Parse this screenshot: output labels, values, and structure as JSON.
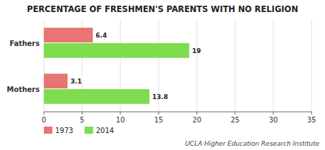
{
  "chart_data": {
    "type": "bar",
    "orientation": "horizontal",
    "title": "PERCENTAGE OF FRESHMEN'S PARENTS WITH NO RELIGION",
    "categories": [
      "Mothers",
      "Fathers"
    ],
    "series": [
      {
        "name": "1973",
        "color": "#e87474",
        "values": [
          3.1,
          6.4
        ]
      },
      {
        "name": "2014",
        "color": "#7ddd4e",
        "values": [
          13.8,
          19
        ]
      }
    ],
    "xlim": [
      0,
      35
    ],
    "xticks": [
      0,
      5,
      10,
      15,
      20,
      25,
      30,
      35
    ],
    "grid": true,
    "data_labels": true,
    "legend": "bottom",
    "annotations": [
      "UCLA Higher Education Research Institute"
    ]
  }
}
